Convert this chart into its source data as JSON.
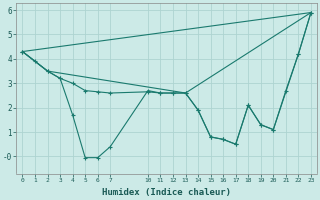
{
  "xlabel": "Humidex (Indice chaleur)",
  "bg_color": "#cceae7",
  "grid_color": "#aed4d1",
  "line_color": "#1a7a6e",
  "xlim": [
    -0.5,
    23.5
  ],
  "ylim": [
    -0.7,
    6.3
  ],
  "xticks": [
    0,
    1,
    2,
    3,
    4,
    5,
    6,
    7,
    10,
    11,
    12,
    13,
    14,
    15,
    16,
    17,
    18,
    19,
    20,
    21,
    22,
    23
  ],
  "yticks": [
    0,
    1,
    2,
    3,
    4,
    5,
    6
  ],
  "ytick_labels": [
    "-0",
    "1",
    "2",
    "3",
    "4",
    "5",
    "6"
  ],
  "series": [
    {
      "x": [
        0,
        23
      ],
      "y": [
        4.3,
        5.9
      ],
      "marker": false
    },
    {
      "x": [
        0,
        2,
        13,
        23
      ],
      "y": [
        4.3,
        3.5,
        2.6,
        5.9
      ],
      "marker": false
    },
    {
      "x": [
        0,
        1,
        2,
        3,
        4,
        5,
        6,
        7,
        10,
        11,
        12,
        13,
        14,
        15,
        16,
        17,
        18,
        19,
        20,
        21,
        22,
        23
      ],
      "y": [
        4.3,
        3.9,
        3.5,
        3.2,
        3.0,
        2.7,
        2.65,
        2.6,
        2.65,
        2.6,
        2.6,
        2.6,
        1.9,
        0.8,
        0.7,
        0.5,
        2.1,
        1.3,
        1.1,
        2.7,
        4.2,
        5.9
      ],
      "marker": true
    },
    {
      "x": [
        0,
        2,
        3,
        4,
        5,
        6,
        7,
        10,
        11,
        12,
        13,
        14,
        15,
        16,
        17,
        18,
        19,
        20,
        22,
        23
      ],
      "y": [
        4.3,
        3.5,
        3.2,
        1.7,
        -0.05,
        -0.05,
        0.4,
        2.7,
        2.6,
        2.6,
        2.6,
        1.9,
        0.8,
        0.7,
        0.5,
        2.1,
        1.3,
        1.1,
        4.2,
        5.9
      ],
      "marker": true
    }
  ]
}
